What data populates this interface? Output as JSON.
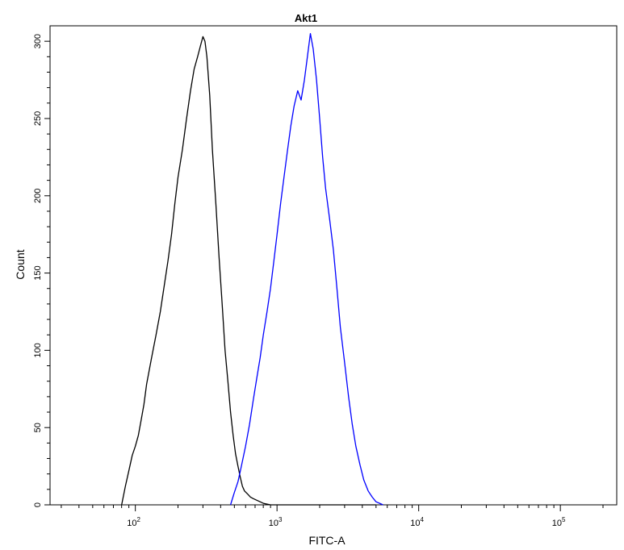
{
  "chart_data": {
    "type": "line",
    "title": "Akt1",
    "xlabel": "FITC-A",
    "ylabel": "Count",
    "xscale": "log",
    "xlim": [
      25,
      250000
    ],
    "ylim": [
      0,
      310
    ],
    "x_ticks": [
      {
        "base": "10",
        "exp": "2",
        "value": 100
      },
      {
        "base": "10",
        "exp": "3",
        "value": 1000
      },
      {
        "base": "10",
        "exp": "4",
        "value": 10000
      },
      {
        "base": "10",
        "exp": "5",
        "value": 100000
      }
    ],
    "y_ticks": [
      "0",
      "50",
      "100",
      "150",
      "200",
      "250",
      "300"
    ],
    "grid": false,
    "series": [
      {
        "color": "#000000",
        "x": [
          80,
          85,
          90,
          95,
          100,
          105,
          110,
          115,
          120,
          130,
          140,
          150,
          160,
          170,
          180,
          190,
          200,
          215,
          230,
          245,
          260,
          275,
          290,
          300,
          310,
          320,
          335,
          350,
          370,
          390,
          410,
          430,
          450,
          470,
          490,
          510,
          530,
          550,
          570,
          590,
          620,
          650,
          680,
          720,
          760,
          800,
          900,
          1200,
          2000,
          5000
        ],
        "y": [
          0,
          12,
          22,
          32,
          38,
          45,
          55,
          65,
          78,
          95,
          110,
          125,
          142,
          158,
          175,
          195,
          212,
          230,
          250,
          268,
          282,
          290,
          298,
          303,
          300,
          290,
          265,
          230,
          195,
          160,
          130,
          100,
          80,
          60,
          45,
          33,
          25,
          18,
          12,
          9,
          7,
          5,
          4,
          3,
          2,
          1,
          0,
          0,
          0,
          0
        ]
      },
      {
        "color": "#0000ff",
        "x": [
          470,
          500,
          530,
          560,
          600,
          640,
          680,
          720,
          760,
          800,
          850,
          900,
          950,
          1000,
          1060,
          1120,
          1180,
          1250,
          1320,
          1400,
          1480,
          1560,
          1650,
          1720,
          1800,
          1900,
          2000,
          2100,
          2200,
          2350,
          2500,
          2650,
          2800,
          3000,
          3200,
          3400,
          3600,
          3850,
          4100,
          4400,
          4700,
          5000,
          5300,
          5600
        ],
        "y": [
          0,
          8,
          15,
          25,
          38,
          52,
          68,
          82,
          95,
          110,
          125,
          140,
          158,
          175,
          195,
          212,
          228,
          245,
          258,
          268,
          262,
          275,
          292,
          305,
          295,
          275,
          250,
          225,
          205,
          185,
          165,
          140,
          115,
          92,
          70,
          52,
          38,
          26,
          16,
          9,
          5,
          2,
          1,
          0
        ]
      }
    ]
  }
}
